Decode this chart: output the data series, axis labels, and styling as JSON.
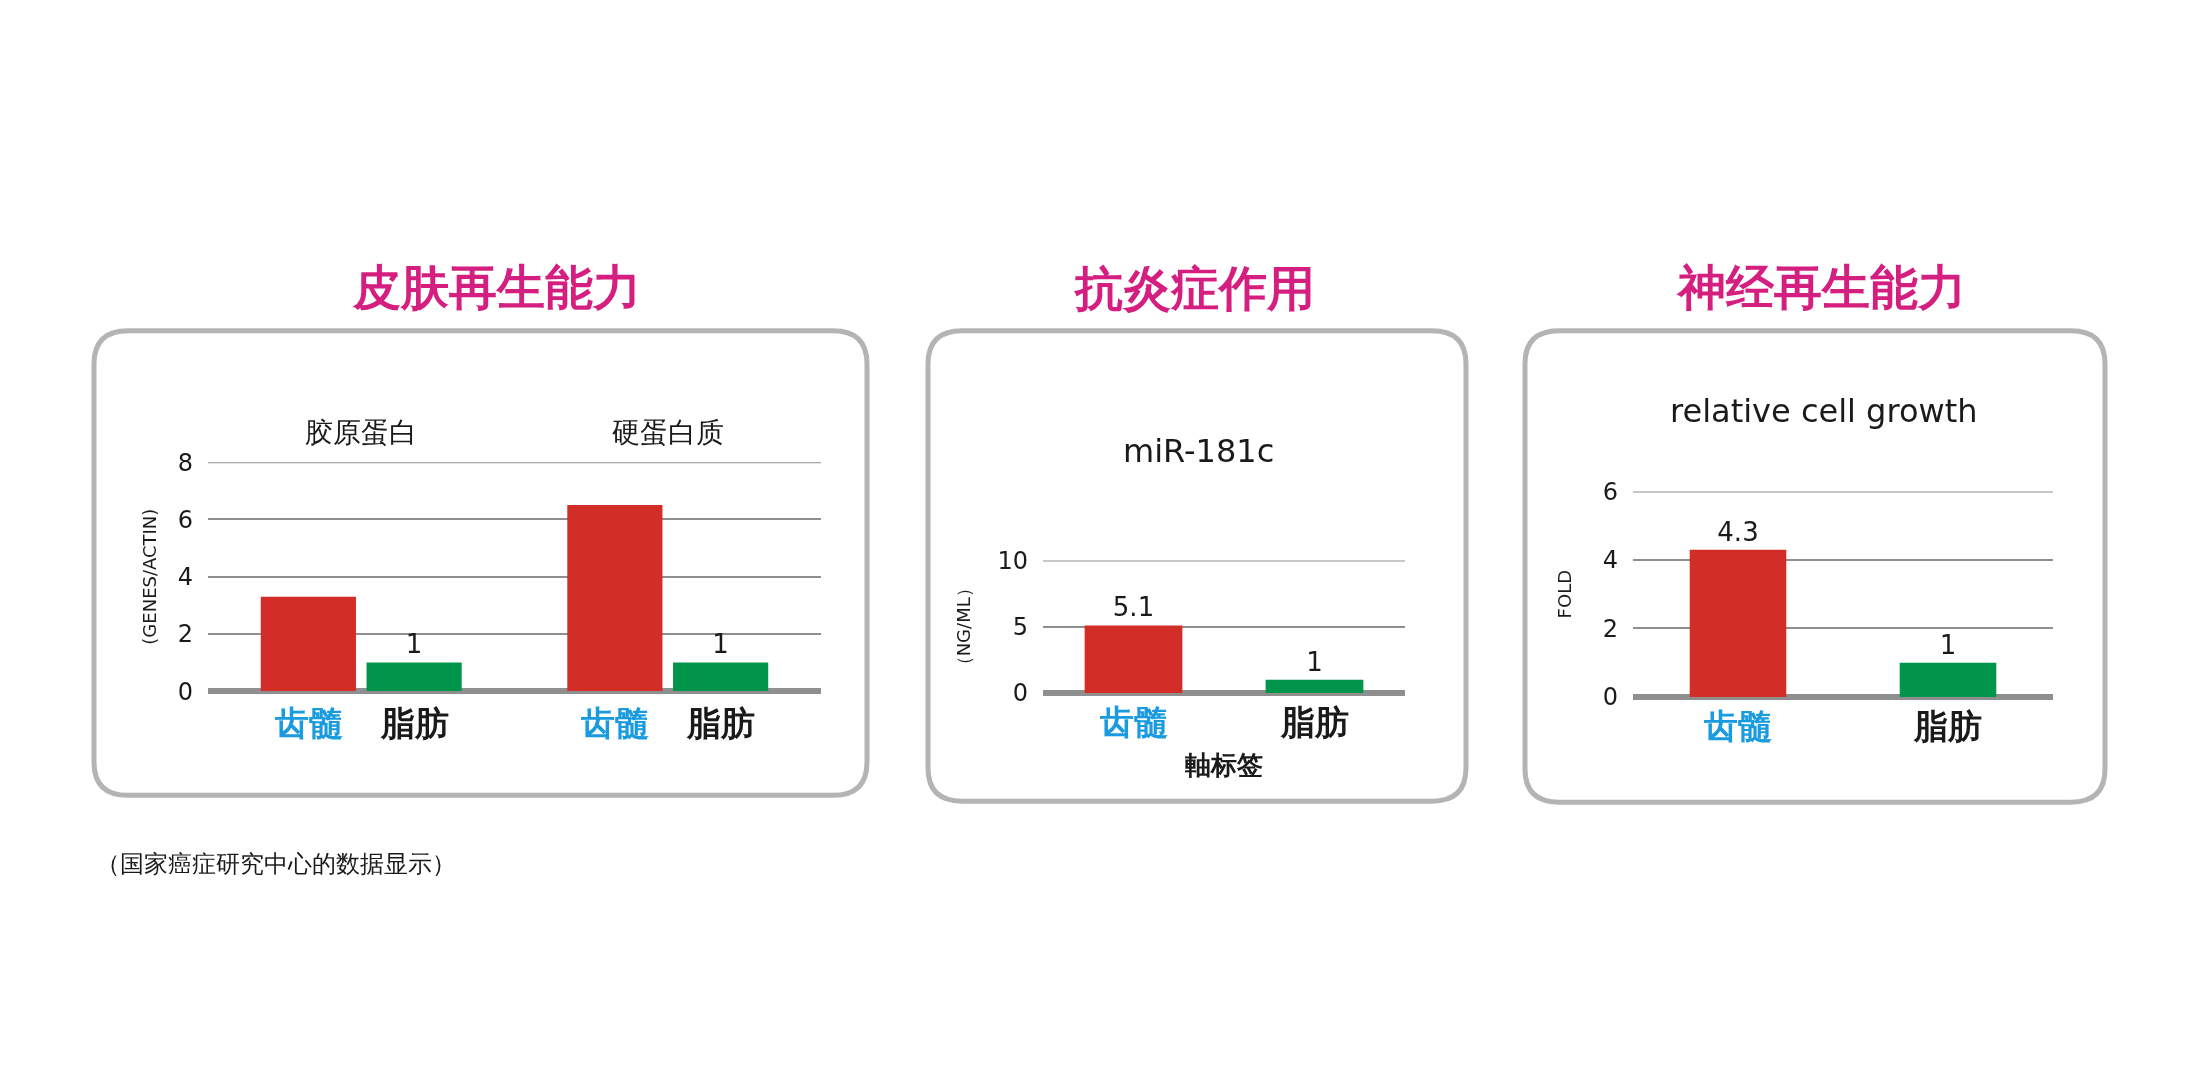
{
  "chart_data": [
    {
      "type": "bar",
      "title": "皮肤再生能力",
      "ylabel": "(GENES/ACTIN)",
      "categories": [
        "胶原蛋白",
        "硬蛋白质"
      ],
      "series": [
        {
          "name": "齿髓",
          "color": "#d22d27",
          "values": [
            3.3,
            6.5
          ]
        },
        {
          "name": "脂肪",
          "color": "#00954a",
          "values": [
            1,
            1
          ],
          "value_labels": [
            "1",
            "1"
          ]
        }
      ],
      "ylim": [
        0,
        8
      ],
      "yticks": [
        0,
        2,
        4,
        6,
        8
      ],
      "grid": "y",
      "annotations": [
        "（国家癌症研究中心的数据显示）"
      ]
    },
    {
      "type": "bar",
      "title": "抗炎症作用",
      "subtitle": "miR-181c",
      "ylabel": "（NG/ML）",
      "xlabel": "軸标签",
      "categories": [
        "齿髓",
        "脂肪"
      ],
      "values": [
        5.1,
        1
      ],
      "colors": [
        "#d22d27",
        "#00954a"
      ],
      "data_labels": true,
      "ylim": [
        0,
        10
      ],
      "yticks": [
        0,
        5,
        10
      ],
      "grid": "y"
    },
    {
      "type": "bar",
      "title": "神经再生能力",
      "subtitle": "relative cell growth",
      "ylabel": "FOLD",
      "categories": [
        "齿髓",
        "脂肪"
      ],
      "values": [
        4.3,
        1
      ],
      "colors": [
        "#d22d27",
        "#00954a"
      ],
      "data_labels": true,
      "ylim": [
        0,
        6
      ],
      "yticks": [
        0,
        2,
        4,
        6
      ],
      "grid": "y"
    }
  ]
}
